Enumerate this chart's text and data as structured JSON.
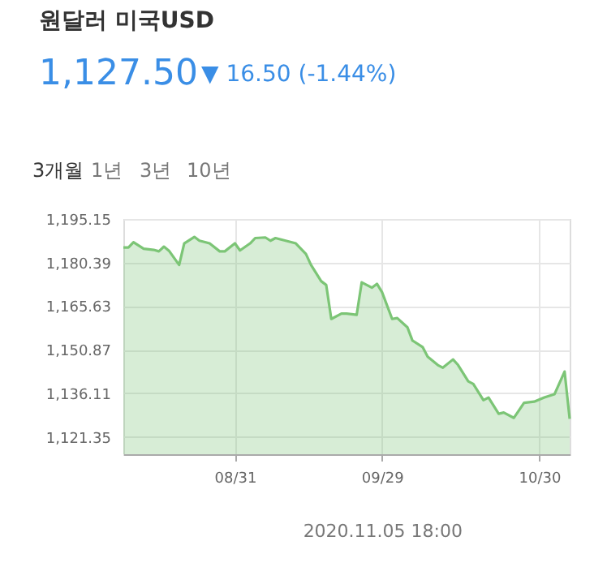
{
  "chart_data": {
    "type": "area",
    "title": "원달러 미국USD",
    "color": "#7cc576",
    "annotations": [
      "1,127.50",
      "▼ 16.50 (-1.44%)",
      "3개월",
      "1년",
      "3년",
      "10년",
      "2020.11.05 18:00"
    ],
    "x": [
      "2020-08-09",
      "2020-08-10",
      "2020-08-11",
      "2020-08-13",
      "2020-08-15",
      "2020-08-16",
      "2020-08-17",
      "2020-08-18",
      "2020-08-20",
      "2020-08-21",
      "2020-08-23",
      "2020-08-24",
      "2020-08-26",
      "2020-08-28",
      "2020-08-29",
      "2020-08-31",
      "2020-09-01",
      "2020-09-03",
      "2020-09-04",
      "2020-09-06",
      "2020-09-07",
      "2020-09-08",
      "2020-09-10",
      "2020-09-12",
      "2020-09-14",
      "2020-09-15",
      "2020-09-17",
      "2020-09-18",
      "2020-09-19",
      "2020-09-21",
      "2020-09-22",
      "2020-09-24",
      "2020-09-25",
      "2020-09-27",
      "2020-09-28",
      "2020-09-29",
      "2020-10-01",
      "2020-10-02",
      "2020-10-04",
      "2020-10-05",
      "2020-10-07",
      "2020-10-08",
      "2020-10-10",
      "2020-10-11",
      "2020-10-13",
      "2020-10-14",
      "2020-10-16",
      "2020-10-17",
      "2020-10-19",
      "2020-10-20",
      "2020-10-22",
      "2020-10-23",
      "2020-10-25",
      "2020-10-27",
      "2020-10-29",
      "2020-10-31",
      "2020-11-02",
      "2020-11-04",
      "2020-11-05"
    ],
    "values": [
      1185.5,
      1185.5,
      1187.3,
      1185.1,
      1184.7,
      1184.2,
      1185.8,
      1184.4,
      1179.6,
      1186.9,
      1189.1,
      1187.8,
      1186.9,
      1184.2,
      1184.2,
      1186.9,
      1184.5,
      1186.9,
      1188.7,
      1188.9,
      1187.8,
      1188.7,
      1187.8,
      1186.9,
      1183.3,
      1179.6,
      1174.1,
      1172.8,
      1161.3,
      1163.1,
      1163.1,
      1162.7,
      1173.7,
      1171.9,
      1173.2,
      1170.4,
      1161.3,
      1161.6,
      1158.5,
      1154.0,
      1151.8,
      1148.5,
      1145.7,
      1144.8,
      1147.6,
      1145.7,
      1140.2,
      1139.3,
      1133.8,
      1134.7,
      1129.2,
      1129.6,
      1127.8,
      1132.9,
      1133.3,
      1134.7,
      1135.8,
      1143.5,
      1127.5
    ],
    "xlim": [
      "2020-08-09",
      "2020-11-05"
    ],
    "xticks": [
      {
        "value": "2020-08-31",
        "label": "08/31"
      },
      {
        "value": "2020-09-29",
        "label": "09/29"
      },
      {
        "value": "2020-10-30",
        "label": "10/30"
      }
    ],
    "ylim": [
      1115.5,
      1195.15
    ],
    "yticks": [
      {
        "value": 1121.35,
        "label": "1,121.35"
      },
      {
        "value": 1136.11,
        "label": "1,136.11"
      },
      {
        "value": 1150.87,
        "label": "1,150.87"
      },
      {
        "value": 1165.63,
        "label": "1,165.63"
      },
      {
        "value": 1180.39,
        "label": "1,180.39"
      },
      {
        "value": 1195.15,
        "label": "1,195.15"
      }
    ],
    "grid": true
  }
}
